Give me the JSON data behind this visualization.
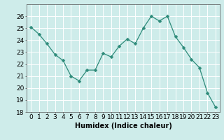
{
  "x": [
    0,
    1,
    2,
    3,
    4,
    5,
    6,
    7,
    8,
    9,
    10,
    11,
    12,
    13,
    14,
    15,
    16,
    17,
    18,
    19,
    20,
    21,
    22,
    23
  ],
  "y": [
    25.1,
    24.5,
    23.7,
    22.8,
    22.3,
    21.0,
    20.6,
    21.5,
    21.5,
    22.9,
    22.6,
    23.5,
    24.1,
    23.7,
    25.0,
    26.0,
    25.6,
    26.0,
    24.3,
    23.4,
    22.4,
    21.7,
    19.6,
    18.4
  ],
  "line_color": "#2e8b7a",
  "marker": "D",
  "marker_size": 2.5,
  "bg_color": "#ceecea",
  "grid_color": "#ffffff",
  "xlabel": "Humidex (Indice chaleur)",
  "ylim": [
    18,
    27
  ],
  "xlim": [
    -0.5,
    23.5
  ],
  "yticks": [
    18,
    19,
    20,
    21,
    22,
    23,
    24,
    25,
    26
  ],
  "xticks": [
    0,
    1,
    2,
    3,
    4,
    5,
    6,
    7,
    8,
    9,
    10,
    11,
    12,
    13,
    14,
    15,
    16,
    17,
    18,
    19,
    20,
    21,
    22,
    23
  ],
  "xtick_labels": [
    "0",
    "1",
    "2",
    "3",
    "4",
    "5",
    "6",
    "7",
    "8",
    "9",
    "10",
    "11",
    "12",
    "13",
    "14",
    "15",
    "16",
    "17",
    "18",
    "19",
    "20",
    "21",
    "22",
    "23"
  ],
  "xlabel_fontsize": 7,
  "tick_fontsize": 6.5
}
